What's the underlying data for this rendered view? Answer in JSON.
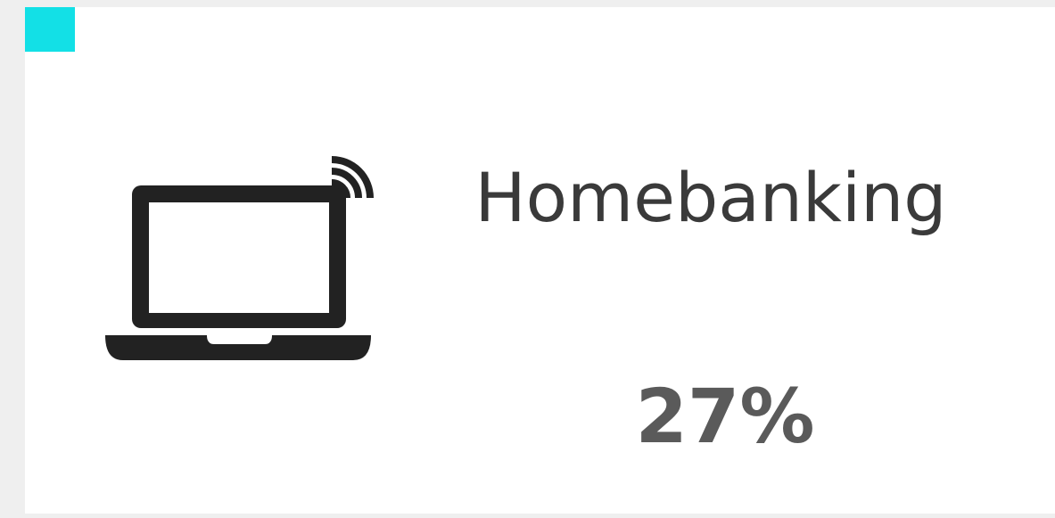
{
  "card": {
    "title": "Homebanking",
    "value": "27%"
  }
}
